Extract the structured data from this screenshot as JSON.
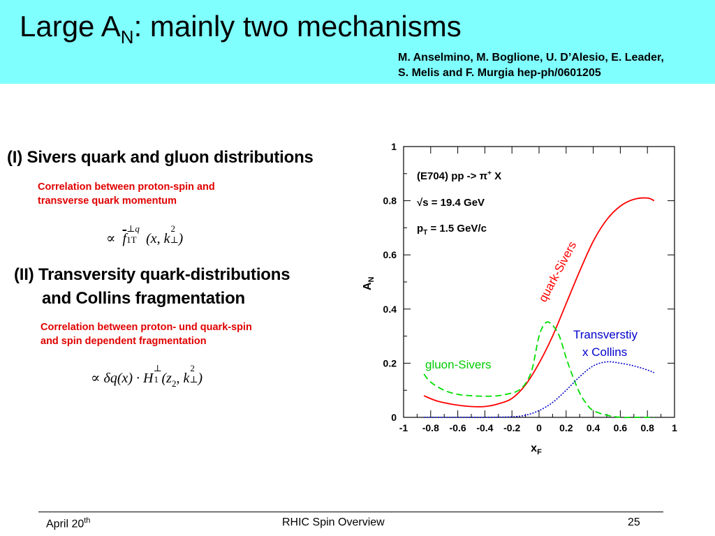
{
  "header": {
    "title_pre": "Large A",
    "title_sub": "N",
    "title_post": ": mainly two mechanisms",
    "authors_line1": "M. Anselmino, M. Boglione, U. D’Alesio, E. Leader,",
    "authors_line2": "S. Melis and F. Murgia hep-ph/0601205",
    "bg_color": "#80ffff"
  },
  "section1": {
    "heading": "(I)  Sivers quark and gluon distributions",
    "note_line1": "Correlation between proton-spin and",
    "note_line2": "transverse quark momentum",
    "formula": {
      "prop": "∝",
      "f": "f",
      "sup": "⊥q",
      "sub": "1T",
      "args_open": "(x, k",
      "k_sup": "2",
      "k_sub": "⊥",
      "close": ")"
    }
  },
  "section2": {
    "heading_line1": "(II) Transversity quark-distributions",
    "heading_line2": "and Collins fragmentation",
    "note_line1": "Correlation between proton- und quark-spin",
    "note_line2": "and spin dependent fragmentation",
    "formula": {
      "prop": "∝",
      "dq": "δq(x) · H",
      "h_sup": "⊥",
      "h_sub": "1",
      "args": "(z",
      "z_sub": "2",
      "mid": ", k",
      "k_sup": "2",
      "k_sub": "⊥",
      "close": ")"
    }
  },
  "footer": {
    "date": "April 20",
    "date_sup": "th",
    "center": "RHIC Spin Overview",
    "page": "25"
  },
  "chart_data": {
    "type": "line",
    "xlabel": "x",
    "xlabel_sub": "F",
    "ylabel": "A",
    "ylabel_sub": "N",
    "xlim": [
      -1,
      1
    ],
    "ylim": [
      0,
      1
    ],
    "x_ticks": [
      "-1",
      "-0.8",
      "-0.6",
      "-0.4",
      "-0.2",
      "0",
      "0.2",
      "0.4",
      "0.6",
      "0.8",
      "1"
    ],
    "y_ticks": [
      "0",
      "0.2",
      "0.4",
      "0.6",
      "0.8",
      "1"
    ],
    "annotations": [
      "(E704)  pp -> π⁺ X",
      "√s = 19.4 GeV",
      "p_T = 1.5 GeV/c"
    ],
    "annotation_lines": {
      "a1": "(E704)  pp -> π",
      "a1_sup": "+",
      "a1_post": " X",
      "a2": "√s = 19.4 GeV",
      "a3": "p",
      "a3_sub": "T",
      "a3_post": " = 1.5 GeV/c"
    },
    "series": [
      {
        "name": "quark-Sivers",
        "color": "#ff0000",
        "style": "solid",
        "points": [
          [
            -0.85,
            0.08
          ],
          [
            -0.75,
            0.06
          ],
          [
            -0.6,
            0.045
          ],
          [
            -0.5,
            0.04
          ],
          [
            -0.4,
            0.04
          ],
          [
            -0.3,
            0.05
          ],
          [
            -0.2,
            0.07
          ],
          [
            -0.1,
            0.12
          ],
          [
            0.0,
            0.2
          ],
          [
            0.1,
            0.3
          ],
          [
            0.2,
            0.42
          ],
          [
            0.3,
            0.54
          ],
          [
            0.4,
            0.65
          ],
          [
            0.5,
            0.73
          ],
          [
            0.6,
            0.78
          ],
          [
            0.7,
            0.805
          ],
          [
            0.8,
            0.81
          ],
          [
            0.85,
            0.8
          ]
        ]
      },
      {
        "name": "gluon-Sivers",
        "color": "#00dd00",
        "style": "dashed",
        "points": [
          [
            -0.85,
            0.16
          ],
          [
            -0.8,
            0.13
          ],
          [
            -0.7,
            0.1
          ],
          [
            -0.6,
            0.085
          ],
          [
            -0.5,
            0.08
          ],
          [
            -0.4,
            0.078
          ],
          [
            -0.3,
            0.08
          ],
          [
            -0.2,
            0.09
          ],
          [
            -0.15,
            0.1
          ],
          [
            -0.1,
            0.125
          ],
          [
            -0.05,
            0.18
          ],
          [
            0.0,
            0.3
          ],
          [
            0.05,
            0.35
          ],
          [
            0.1,
            0.34
          ],
          [
            0.15,
            0.3
          ],
          [
            0.2,
            0.22
          ],
          [
            0.25,
            0.15
          ],
          [
            0.3,
            0.09
          ],
          [
            0.35,
            0.05
          ],
          [
            0.4,
            0.025
          ],
          [
            0.5,
            0.008
          ],
          [
            0.6,
            0.0
          ],
          [
            0.7,
            0.0
          ],
          [
            0.8,
            0.0
          ],
          [
            0.85,
            0.0
          ]
        ]
      },
      {
        "name": "Transverstiy x Collins",
        "color": "#0000cc",
        "style": "dotted",
        "points": [
          [
            -0.85,
            0.0
          ],
          [
            -0.6,
            0.0
          ],
          [
            -0.4,
            0.0
          ],
          [
            -0.2,
            0.002
          ],
          [
            -0.1,
            0.008
          ],
          [
            0.0,
            0.025
          ],
          [
            0.1,
            0.055
          ],
          [
            0.2,
            0.1
          ],
          [
            0.3,
            0.15
          ],
          [
            0.4,
            0.19
          ],
          [
            0.5,
            0.205
          ],
          [
            0.6,
            0.2
          ],
          [
            0.7,
            0.19
          ],
          [
            0.8,
            0.175
          ],
          [
            0.85,
            0.165
          ]
        ]
      }
    ],
    "curve_labels": {
      "quark": "quark-Sivers",
      "gluon": "gluon-Sivers",
      "transv_line1": "Transverstiy",
      "transv_line2": "x Collins"
    }
  }
}
